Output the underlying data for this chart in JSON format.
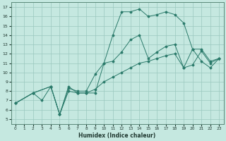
{
  "xlabel": "Humidex (Indice chaleur)",
  "bg_color": "#c5e8e0",
  "grid_color": "#9ac8be",
  "line_color": "#2a7a6a",
  "xlim": [
    -0.5,
    23.5
  ],
  "ylim": [
    4.5,
    17.5
  ],
  "xticks": [
    0,
    1,
    2,
    3,
    4,
    5,
    6,
    7,
    8,
    9,
    10,
    11,
    12,
    13,
    14,
    15,
    16,
    17,
    18,
    19,
    20,
    21,
    22,
    23
  ],
  "yticks": [
    5,
    6,
    7,
    8,
    9,
    10,
    11,
    12,
    13,
    14,
    15,
    16,
    17
  ],
  "line1_x": [
    0,
    2,
    3,
    4,
    5,
    6,
    7,
    8,
    9,
    10,
    11,
    12,
    13,
    14,
    15,
    16,
    17,
    18,
    19,
    20,
    21,
    22,
    23
  ],
  "line1_y": [
    6.7,
    7.8,
    7.0,
    8.5,
    5.5,
    8.5,
    7.8,
    7.8,
    7.8,
    11.0,
    14.0,
    16.5,
    16.5,
    16.8,
    16.0,
    16.2,
    16.5,
    16.2,
    15.3,
    12.5,
    11.2,
    10.5,
    11.5
  ],
  "line2_x": [
    0,
    2,
    4,
    5,
    6,
    7,
    8,
    9,
    10,
    11,
    12,
    13,
    14,
    15,
    16,
    17,
    18,
    19,
    20,
    21,
    22,
    23
  ],
  "line2_y": [
    6.7,
    7.8,
    8.5,
    5.5,
    8.3,
    8.0,
    8.0,
    9.8,
    11.0,
    11.2,
    12.2,
    13.5,
    14.0,
    11.5,
    12.2,
    12.8,
    13.0,
    10.5,
    12.5,
    12.5,
    11.2,
    11.5
  ],
  "line3_x": [
    0,
    2,
    4,
    5,
    6,
    7,
    8,
    9,
    10,
    11,
    12,
    13,
    14,
    15,
    16,
    17,
    18,
    19,
    20,
    21,
    22,
    23
  ],
  "line3_y": [
    6.7,
    7.8,
    8.5,
    5.5,
    8.0,
    7.8,
    7.8,
    8.2,
    9.0,
    9.5,
    10.0,
    10.5,
    11.0,
    11.2,
    11.5,
    11.8,
    12.0,
    10.5,
    10.8,
    12.3,
    11.0,
    11.5
  ]
}
